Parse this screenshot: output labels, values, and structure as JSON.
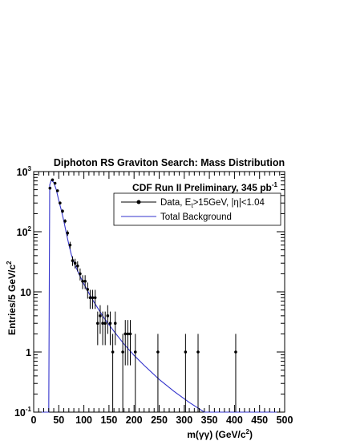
{
  "chart_data": {
    "type": "scatter",
    "title": "Diphoton RS Graviton Search: Mass Distribution",
    "annotation": {
      "main": "CDF Run II Preliminary, 345 pb",
      "sup": "-1"
    },
    "xlabel": {
      "main": "m(γγ) (GeV/c",
      "sup": "2",
      "tail": ")"
    },
    "ylabel": {
      "main": "Entries/5 GeV/c",
      "sup": "2"
    },
    "x_range": [
      0,
      500
    ],
    "y_range": [
      0.1,
      1000
    ],
    "y_scale": "log",
    "x_ticks": [
      "0",
      "50",
      "100",
      "150",
      "200",
      "250",
      "300",
      "350",
      "400",
      "450",
      "500"
    ],
    "y_ticks": [
      {
        "base": "10",
        "exp": "-1",
        "value": 0.1
      },
      {
        "base": "1",
        "exp": "",
        "value": 1
      },
      {
        "base": "10",
        "exp": "",
        "value": 10
      },
      {
        "base": "10",
        "exp": "2",
        "value": 100
      },
      {
        "base": "10",
        "exp": "3",
        "value": 1000
      }
    ],
    "grid": false,
    "legend": {
      "placement": "top-right",
      "entries": [
        {
          "series": "data",
          "label_main": "Data, E",
          "label_sub": "t",
          "label_rest": ">15GeV, |η|<1.04"
        },
        {
          "series": "background",
          "label": "Total Background"
        }
      ]
    },
    "series": [
      {
        "id": "data",
        "style": "points-with-errors",
        "color": "#000000",
        "points": [
          {
            "x": 32.5,
            "y": 530,
            "err": 23
          },
          {
            "x": 37.5,
            "y": 730,
            "err": 27
          },
          {
            "x": 42.5,
            "y": 640,
            "err": 25
          },
          {
            "x": 47.5,
            "y": 480,
            "err": 22
          },
          {
            "x": 52.5,
            "y": 300,
            "err": 17
          },
          {
            "x": 57.5,
            "y": 220,
            "err": 15
          },
          {
            "x": 62.5,
            "y": 150,
            "err": 12
          },
          {
            "x": 67.5,
            "y": 95,
            "err": 10
          },
          {
            "x": 72.5,
            "y": 60,
            "err": 8
          },
          {
            "x": 77.5,
            "y": 33,
            "err": 6
          },
          {
            "x": 82.5,
            "y": 30,
            "err": 5.5
          },
          {
            "x": 87.5,
            "y": 27,
            "err": 5.2
          },
          {
            "x": 92.5,
            "y": 20,
            "err": 4.5
          },
          {
            "x": 97.5,
            "y": 15,
            "err": 3.9
          },
          {
            "x": 102.5,
            "y": 15,
            "err": 3.9
          },
          {
            "x": 107.5,
            "y": 11,
            "err": 3.3
          },
          {
            "x": 112.5,
            "y": 8,
            "err": 2.8
          },
          {
            "x": 117.5,
            "y": 8,
            "err": 2.8
          },
          {
            "x": 122.5,
            "y": 8,
            "err": 2.8
          },
          {
            "x": 127.5,
            "y": 3,
            "err": 1.7
          },
          {
            "x": 132.5,
            "y": 4,
            "err": 2
          },
          {
            "x": 137.5,
            "y": 3,
            "err": 1.7
          },
          {
            "x": 142.5,
            "y": 3,
            "err": 1.7
          },
          {
            "x": 147.5,
            "y": 4,
            "err": 2
          },
          {
            "x": 152.5,
            "y": 3,
            "err": 1.7
          },
          {
            "x": 157.5,
            "y": 1,
            "err": 1
          },
          {
            "x": 162.5,
            "y": 3,
            "err": 1.7
          },
          {
            "x": 177.5,
            "y": 1,
            "err": 1
          },
          {
            "x": 182.5,
            "y": 2,
            "err": 1.4
          },
          {
            "x": 187.5,
            "y": 2,
            "err": 1.4
          },
          {
            "x": 192.5,
            "y": 2,
            "err": 1.4
          },
          {
            "x": 202.5,
            "y": 1,
            "err": 1
          },
          {
            "x": 247.5,
            "y": 1,
            "err": 1
          },
          {
            "x": 302.5,
            "y": 1,
            "err": 1
          },
          {
            "x": 327.5,
            "y": 1,
            "err": 1
          },
          {
            "x": 402.5,
            "y": 1,
            "err": 1
          }
        ]
      },
      {
        "id": "background",
        "style": "line",
        "color": "#3333cc",
        "points": [
          {
            "x": 0,
            "y": 0.1
          },
          {
            "x": 30,
            "y": 0.1
          },
          {
            "x": 32,
            "y": 600
          },
          {
            "x": 35,
            "y": 720
          },
          {
            "x": 40,
            "y": 660
          },
          {
            "x": 45,
            "y": 500
          },
          {
            "x": 50,
            "y": 330
          },
          {
            "x": 55,
            "y": 230
          },
          {
            "x": 60,
            "y": 150
          },
          {
            "x": 65,
            "y": 95
          },
          {
            "x": 70,
            "y": 62
          },
          {
            "x": 75,
            "y": 42
          },
          {
            "x": 80,
            "y": 31
          },
          {
            "x": 90,
            "y": 20
          },
          {
            "x": 100,
            "y": 13.5
          },
          {
            "x": 110,
            "y": 9.5
          },
          {
            "x": 120,
            "y": 6.8
          },
          {
            "x": 140,
            "y": 3.7
          },
          {
            "x": 160,
            "y": 2.2
          },
          {
            "x": 180,
            "y": 1.35
          },
          {
            "x": 200,
            "y": 0.88
          },
          {
            "x": 220,
            "y": 0.6
          },
          {
            "x": 250,
            "y": 0.35
          },
          {
            "x": 280,
            "y": 0.22
          },
          {
            "x": 310,
            "y": 0.145
          },
          {
            "x": 340,
            "y": 0.1
          },
          {
            "x": 500,
            "y": 0.1
          }
        ]
      }
    ]
  }
}
